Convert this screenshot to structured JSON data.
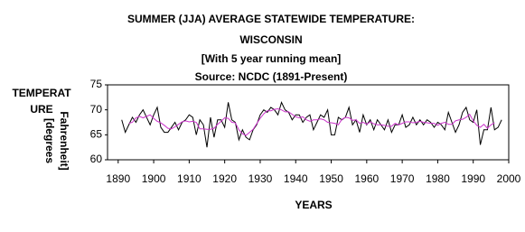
{
  "chart_data": {
    "type": "line",
    "title": [
      "SUMMER (JJA) AVERAGE STATEWIDE TEMPERATURE:",
      "WISCONSIN",
      "[With 5 year running mean]",
      "Source: NCDC (1891-Present)"
    ],
    "x_label": "YEARS",
    "y_label": [
      "TEMPERAT",
      "URE",
      "[degrees",
      "Fahrenheit]"
    ],
    "x": [
      1891,
      1892,
      1893,
      1894,
      1895,
      1896,
      1897,
      1898,
      1899,
      1900,
      1901,
      1902,
      1903,
      1904,
      1905,
      1906,
      1907,
      1908,
      1909,
      1910,
      1911,
      1912,
      1913,
      1914,
      1915,
      1916,
      1917,
      1918,
      1919,
      1920,
      1921,
      1922,
      1923,
      1924,
      1925,
      1926,
      1927,
      1928,
      1929,
      1930,
      1931,
      1932,
      1933,
      1934,
      1935,
      1936,
      1937,
      1938,
      1939,
      1940,
      1941,
      1942,
      1943,
      1944,
      1945,
      1946,
      1947,
      1948,
      1949,
      1950,
      1951,
      1952,
      1953,
      1954,
      1955,
      1956,
      1957,
      1958,
      1959,
      1960,
      1961,
      1962,
      1963,
      1964,
      1965,
      1966,
      1967,
      1968,
      1969,
      1970,
      1971,
      1972,
      1973,
      1974,
      1975,
      1976,
      1977,
      1978,
      1979,
      1980,
      1981,
      1982,
      1983,
      1984,
      1985,
      1986,
      1987,
      1988,
      1989,
      1990,
      1991,
      1992,
      1993,
      1994,
      1995,
      1996,
      1997,
      1998
    ],
    "series": [
      {
        "color": "#000000",
        "values": [
          68,
          65.5,
          67,
          68.5,
          67.5,
          69,
          70,
          68.5,
          67,
          69,
          70.5,
          66.5,
          65.5,
          65.5,
          66.5,
          67.5,
          66,
          67.5,
          68,
          69,
          68.5,
          65,
          68,
          67,
          62.5,
          68.5,
          64.5,
          68,
          68,
          66.5,
          71.5,
          68,
          67.5,
          64,
          66,
          64.5,
          64,
          66,
          67,
          69,
          70,
          69.5,
          70.5,
          70,
          69,
          71.5,
          70,
          69.5,
          68,
          69,
          69,
          67.5,
          68.5,
          69,
          66,
          67.5,
          69,
          68.5,
          70,
          65,
          65,
          68.5,
          68,
          68.5,
          70.5,
          67,
          68,
          65.5,
          69,
          67,
          68,
          66,
          68,
          67,
          66,
          68,
          65.5,
          67,
          67,
          69,
          66.5,
          67,
          68.5,
          67,
          68,
          67,
          68,
          67.5,
          66.5,
          67.5,
          67,
          66,
          69.5,
          67.5,
          65.5,
          67,
          69.5,
          70.5,
          68,
          67.5,
          70,
          63,
          66,
          66,
          70.5,
          66,
          66.5,
          68
        ]
      },
      {
        "color": "#cc33cc",
        "values": [
          null,
          null,
          67.3,
          67.5,
          68.4,
          68.7,
          68.4,
          68.7,
          69.0,
          68.3,
          67.7,
          67.4,
          66.9,
          66.3,
          66.2,
          66.6,
          67.1,
          67.6,
          67.8,
          67.6,
          67.7,
          67.5,
          66.2,
          66.2,
          66.1,
          66.1,
          66.3,
          67.1,
          67.7,
          68.4,
          68.3,
          67.5,
          67.4,
          66.0,
          65.2,
          64.9,
          65.5,
          66.1,
          67.2,
          68.3,
          69.2,
          69.8,
          69.8,
          70.1,
          70.2,
          70.0,
          69.6,
          69.6,
          69.1,
          68.6,
          68.4,
          68.6,
          68.0,
          67.7,
          68.0,
          68.0,
          68.2,
          68.0,
          67.5,
          67.4,
          67.3,
          67.0,
          68.1,
          68.5,
          68.4,
          67.9,
          68.0,
          67.3,
          67.5,
          67.1,
          67.6,
          67.2,
          67.0,
          67.0,
          66.9,
          66.7,
          66.7,
          67.3,
          67.0,
          67.3,
          67.6,
          67.6,
          67.4,
          67.5,
          67.7,
          67.5,
          67.4,
          67.3,
          67.3,
          66.9,
          67.3,
          67.5,
          67.1,
          67.1,
          67.8,
          68.0,
          68.1,
          68.5,
          69.1,
          67.8,
          66.9,
          66.5,
          67.1,
          66.3,
          67.0,
          67.4,
          null,
          null
        ]
      }
    ],
    "xlim": [
      1887,
      2000
    ],
    "ylim": [
      60,
      75
    ],
    "xticks": [
      1890,
      1900,
      1910,
      1920,
      1930,
      1940,
      1950,
      1960,
      1970,
      1980,
      1990,
      2000
    ],
    "yticks": [
      60,
      65,
      70,
      75
    ]
  }
}
